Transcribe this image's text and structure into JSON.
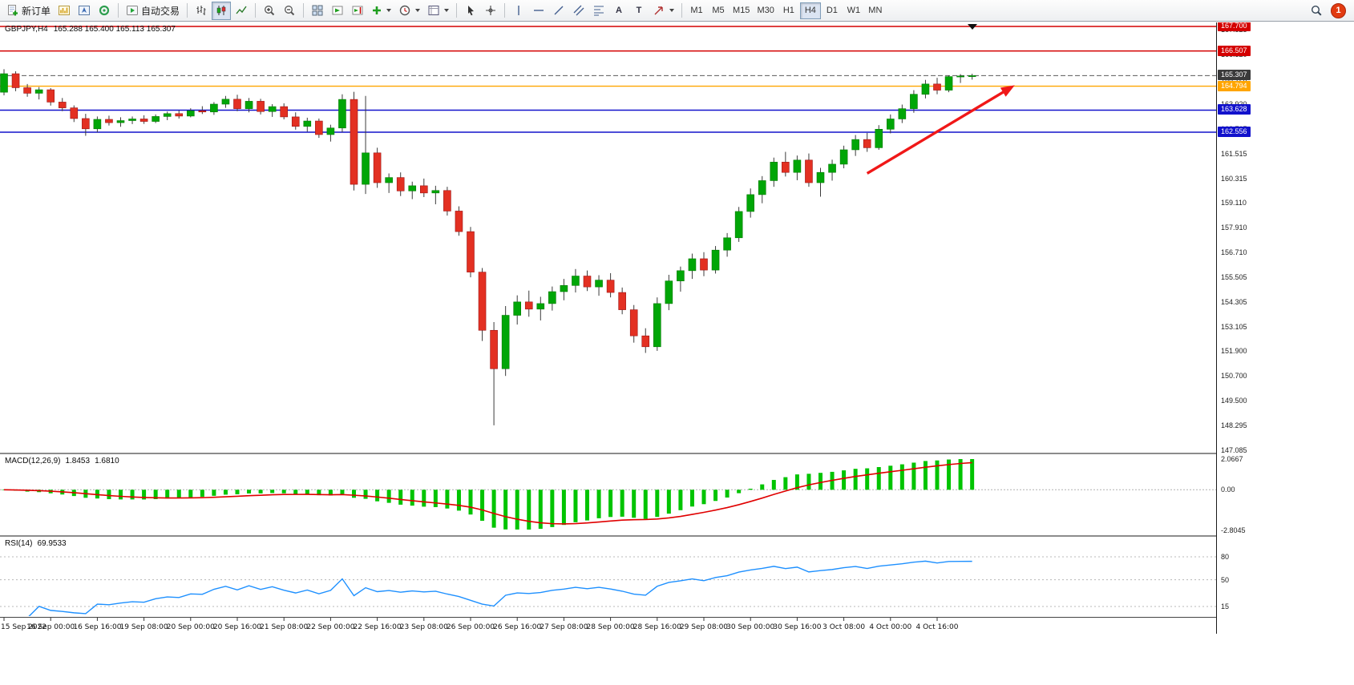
{
  "toolbar": {
    "new_order_label": "新订单",
    "autotrading_label": "自动交易",
    "text_tool_label": "A",
    "label_tool_label": "T",
    "timeframes": [
      "M1",
      "M5",
      "M15",
      "M30",
      "H1",
      "H4",
      "D1",
      "W1",
      "MN"
    ],
    "active_timeframe": "H4",
    "notification_count": "1"
  },
  "chart": {
    "symbol_period": "GBPJPY,H4",
    "ohlc_text": "165.288 165.400 165.113 165.307"
  },
  "indicators": {
    "macd": {
      "label": "MACD(12,26,9)",
      "value_main": "1.8453",
      "value_signal": "1.6810"
    },
    "rsi": {
      "label": "RSI(14)",
      "value": "69.9533"
    }
  },
  "chart_data": [
    {
      "type": "candlestick",
      "symbol": "GBPJPY",
      "timeframe": "H4",
      "current_ohlc": {
        "open": 165.288,
        "high": 165.4,
        "low": 165.113,
        "close": 165.307
      },
      "ylim": [
        147.085,
        167.7
      ],
      "y_ticks": [
        "167.525",
        "166.320",
        "165.120",
        "163.920",
        "162.715",
        "161.515",
        "160.315",
        "159.110",
        "157.910",
        "156.710",
        "155.505",
        "154.305",
        "153.105",
        "151.900",
        "150.700",
        "149.500",
        "148.295",
        "147.085"
      ],
      "x_labels": [
        "15 Sep 2022",
        "16 Sep 00:00",
        "16 Sep 16:00",
        "19 Sep 08:00",
        "20 Sep 00:00",
        "20 Sep 16:00",
        "21 Sep 08:00",
        "22 Sep 00:00",
        "22 Sep 16:00",
        "23 Sep 08:00",
        "26 Sep 00:00",
        "26 Sep 16:00",
        "27 Sep 08:00",
        "28 Sep 00:00",
        "28 Sep 16:00",
        "29 Sep 08:00",
        "30 Sep 00:00",
        "30 Sep 16:00",
        "3 Oct 08:00",
        "4 Oct 00:00",
        "4 Oct 16:00"
      ],
      "x_label_every_n_bars": 4,
      "hlines": [
        {
          "price": 167.7,
          "label": "167.700",
          "color": "#d40000"
        },
        {
          "price": 166.507,
          "label": "166.507",
          "color": "#d40000"
        },
        {
          "price": 164.794,
          "label": "164.794",
          "color": "#ffa500"
        },
        {
          "price": 163.628,
          "label": "163.628",
          "color": "#1212cc"
        },
        {
          "price": 162.556,
          "label": "162.556",
          "color": "#1212cc"
        }
      ],
      "current_price": {
        "price": 165.307,
        "label": "165.307",
        "badge_color": "#3a3a3a"
      },
      "annotations": [
        {
          "type": "arrow",
          "from_bar": 74,
          "from_price": 160.55,
          "to_bar": 86.3,
          "to_price": 164.72,
          "color": "#f01818"
        }
      ],
      "colors": {
        "bull": "#00a607",
        "bear": "#e33022",
        "wick": "#3c3c3c"
      },
      "candles": [
        [
          164.5,
          165.62,
          164.35,
          165.4
        ],
        [
          165.4,
          165.52,
          164.55,
          164.72
        ],
        [
          164.72,
          164.9,
          164.28,
          164.45
        ],
        [
          164.45,
          164.75,
          164.15,
          164.62
        ],
        [
          164.62,
          164.7,
          163.85,
          164.02
        ],
        [
          164.02,
          164.22,
          163.58,
          163.74
        ],
        [
          163.74,
          163.86,
          163.05,
          163.22
        ],
        [
          163.22,
          163.45,
          162.38,
          162.72
        ],
        [
          162.72,
          163.32,
          162.55,
          163.18
        ],
        [
          163.18,
          163.36,
          162.88,
          163.02
        ],
        [
          163.02,
          163.28,
          162.82,
          163.12
        ],
        [
          163.12,
          163.32,
          162.95,
          163.2
        ],
        [
          163.2,
          163.38,
          162.96,
          163.08
        ],
        [
          163.08,
          163.42,
          163.0,
          163.32
        ],
        [
          163.32,
          163.56,
          163.14,
          163.46
        ],
        [
          163.46,
          163.62,
          163.22,
          163.34
        ],
        [
          163.34,
          163.72,
          163.28,
          163.6
        ],
        [
          163.6,
          163.82,
          163.44,
          163.54
        ],
        [
          163.54,
          164.02,
          163.4,
          163.92
        ],
        [
          163.92,
          164.32,
          163.74,
          164.16
        ],
        [
          164.16,
          164.38,
          163.58,
          163.7
        ],
        [
          163.7,
          164.22,
          163.52,
          164.06
        ],
        [
          164.06,
          164.18,
          163.42,
          163.56
        ],
        [
          163.56,
          163.92,
          163.3,
          163.8
        ],
        [
          163.8,
          163.96,
          163.18,
          163.3
        ],
        [
          163.3,
          163.52,
          162.68,
          162.84
        ],
        [
          162.84,
          163.26,
          162.58,
          163.1
        ],
        [
          163.1,
          163.22,
          162.28,
          162.44
        ],
        [
          162.44,
          162.92,
          162.1,
          162.76
        ],
        [
          162.76,
          164.4,
          162.55,
          164.15
        ],
        [
          164.15,
          164.52,
          159.72,
          160.02
        ],
        [
          160.02,
          164.32,
          159.55,
          161.55
        ],
        [
          161.55,
          161.8,
          159.85,
          160.1
        ],
        [
          160.1,
          160.55,
          159.6,
          160.35
        ],
        [
          160.35,
          160.6,
          159.45,
          159.7
        ],
        [
          159.7,
          160.15,
          159.3,
          159.95
        ],
        [
          159.95,
          160.3,
          159.4,
          159.6
        ],
        [
          159.6,
          159.95,
          159.05,
          159.72
        ],
        [
          159.72,
          159.9,
          158.5,
          158.72
        ],
        [
          158.72,
          158.95,
          157.52,
          157.72
        ],
        [
          157.72,
          157.95,
          155.5,
          155.75
        ],
        [
          155.75,
          155.95,
          152.4,
          152.92
        ],
        [
          152.92,
          153.32,
          148.3,
          151.05
        ],
        [
          151.05,
          154.1,
          150.7,
          153.65
        ],
        [
          153.65,
          154.62,
          153.2,
          154.3
        ],
        [
          154.3,
          154.85,
          153.58,
          153.95
        ],
        [
          153.95,
          154.55,
          153.4,
          154.22
        ],
        [
          154.22,
          155.05,
          153.88,
          154.8
        ],
        [
          154.8,
          155.42,
          154.38,
          155.1
        ],
        [
          155.1,
          155.9,
          154.76,
          155.56
        ],
        [
          155.56,
          155.83,
          154.83,
          155.03
        ],
        [
          155.03,
          155.6,
          154.6,
          155.36
        ],
        [
          155.36,
          155.7,
          154.52,
          154.76
        ],
        [
          154.76,
          155.0,
          153.7,
          153.92
        ],
        [
          153.92,
          154.15,
          152.32,
          152.65
        ],
        [
          152.65,
          153.02,
          151.82,
          152.12
        ],
        [
          152.12,
          154.52,
          151.92,
          154.22
        ],
        [
          154.22,
          155.62,
          153.9,
          155.32
        ],
        [
          155.32,
          156.02,
          154.8,
          155.82
        ],
        [
          155.82,
          156.65,
          155.42,
          156.4
        ],
        [
          156.4,
          156.72,
          155.55,
          155.85
        ],
        [
          155.85,
          157.02,
          155.68,
          156.82
        ],
        [
          156.82,
          157.65,
          156.5,
          157.42
        ],
        [
          157.42,
          158.92,
          157.22,
          158.7
        ],
        [
          158.7,
          159.82,
          158.4,
          159.52
        ],
        [
          159.52,
          160.42,
          159.1,
          160.2
        ],
        [
          160.2,
          161.32,
          159.9,
          161.1
        ],
        [
          161.1,
          161.6,
          160.4,
          160.6
        ],
        [
          160.6,
          161.42,
          160.22,
          161.2
        ],
        [
          161.2,
          161.52,
          159.9,
          160.1
        ],
        [
          160.1,
          160.82,
          159.42,
          160.6
        ],
        [
          160.6,
          161.22,
          160.2,
          161.0
        ],
        [
          161.0,
          161.9,
          160.8,
          161.7
        ],
        [
          161.7,
          162.42,
          161.4,
          162.2
        ],
        [
          162.2,
          162.52,
          161.6,
          161.8
        ],
        [
          161.8,
          162.9,
          161.7,
          162.7
        ],
        [
          162.7,
          163.42,
          162.5,
          163.2
        ],
        [
          163.2,
          163.9,
          163.0,
          163.7
        ],
        [
          163.7,
          164.6,
          163.5,
          164.4
        ],
        [
          164.4,
          165.1,
          164.2,
          164.9
        ],
        [
          164.9,
          165.2,
          164.4,
          164.6
        ],
        [
          164.6,
          165.32,
          164.5,
          165.26
        ],
        [
          165.26,
          165.38,
          164.95,
          165.29
        ],
        [
          165.288,
          165.4,
          165.113,
          165.307
        ]
      ]
    },
    {
      "type": "macd",
      "label": "MACD(12,26,9)",
      "params": [
        12,
        26,
        9
      ],
      "current_values": [
        1.8453,
        1.681
      ],
      "y_ticks": [
        "2.0667",
        "0.00",
        "-2.8045"
      ],
      "histogram_color": "#00c400",
      "signal_color": "#e00000"
    },
    {
      "type": "rsi",
      "label": "RSI(14)",
      "period": 14,
      "current_value": 69.9533,
      "levels": [
        80,
        50,
        15
      ],
      "y_ticks": [
        "80",
        "50",
        "15"
      ],
      "line_color": "#1e90ff"
    }
  ]
}
